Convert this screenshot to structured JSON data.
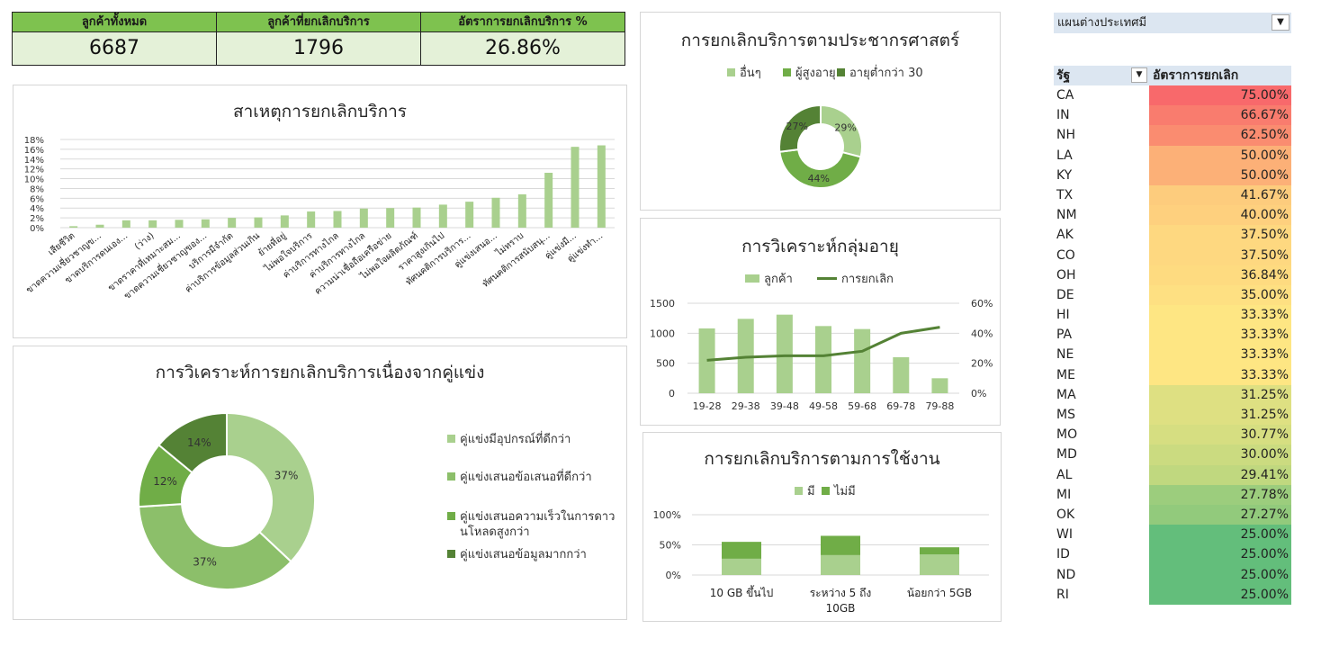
{
  "kpi": {
    "total_label": "ลูกค้าทั้งหมด",
    "total_value": "6687",
    "churned_label": "ลูกค้าที่ยกเลิกบริการ",
    "churned_value": "1796",
    "rate_label": "อัตราการยกเลิกบริการ %",
    "rate_value": "26.86%"
  },
  "colors": {
    "kpi_header": "#7ec24f",
    "kpi_value_bg": "#e4f1d8",
    "bar_green": "#a9d08e",
    "line_green": "#548235"
  },
  "slicer": {
    "title": "แผนต่างประเทศมี",
    "filter_icon": "filter-icon"
  },
  "chart_data": [
    {
      "id": "reasons",
      "type": "bar",
      "title": "สาเหตุการยกเลิกบริการ",
      "categories": [
        "เสียชีวิต",
        "ขาดความเชี่ยวชาญข...",
        "ขาดบริการดนเอง...",
        "(ว่าง)",
        "ขาดราคาที่เหมาะสม...",
        "ขาดความเชี่ยวชาญของ...",
        "บริการมีจำกัด",
        "ค่าบริการข้อมูลส่วนเกิน",
        "ย้ายที่อยู่",
        "ไม่พอใจบริการ",
        "ค่าบริการทางไกล",
        "ค่าบริการทางไกล",
        "ความน่าเชื่อถือเครือข่าย",
        "ไม่พอใจผลิตภัณฑ์",
        "ราคาสูงเกินไป",
        "ทัศนคติการบริการ...",
        "คู่แข่งเสนอ...",
        "ไม่ทราบ",
        "ทัศนคติการสนับสนุ...",
        "คู่แข่งมี...",
        "คู่แข่งทำ..."
      ],
      "values": [
        0.3,
        0.6,
        1.5,
        1.5,
        1.6,
        1.7,
        2.0,
        2.1,
        2.5,
        3.3,
        3.4,
        3.9,
        4.0,
        4.1,
        4.7,
        5.3,
        6.1,
        6.8,
        11.2,
        16.5,
        16.8
      ],
      "ylim": [
        0,
        18
      ],
      "yticks": [
        "0%",
        "2%",
        "4%",
        "6%",
        "8%",
        "10%",
        "12%",
        "14%",
        "16%",
        "18%"
      ],
      "grid": true
    },
    {
      "id": "competitor",
      "type": "pie",
      "title": "การวิเคราะห์การยกเลิกบริการเนื่องจากคู่แข่ง",
      "labels": [
        "คู่แข่งมีอุปกรณ์ที่ดีกว่า",
        "คู่แข่งเสนอข้อเสนอที่ดีกว่า",
        "คู่แข่งเสนอความเร็วในการดาวน์โหลดสูงกว่า",
        "คู่แข่งเสนอข้อมูลมากกว่า"
      ],
      "legend_line2": "นโหลดสูงกว่า",
      "legend_line1": "คู่แข่งเสนอความเร็วในการดาว",
      "values": [
        37,
        37,
        12,
        14
      ],
      "value_labels": [
        "37%",
        "37%",
        "12%",
        "14%"
      ],
      "colors": [
        "#a9d08e",
        "#8cbf6a",
        "#70ad47",
        "#548235"
      ]
    },
    {
      "id": "demographic",
      "type": "pie",
      "title": "การยกเลิกบริการตามประชากรศาสตร์",
      "labels": [
        "อื่นๆ",
        "ผู้สูงอายุ",
        "อายุต่ำกว่า 30"
      ],
      "values": [
        29,
        44,
        27
      ],
      "value_labels": [
        "29%",
        "44%",
        "27%"
      ],
      "colors": [
        "#a9d08e",
        "#70ad47",
        "#548235"
      ]
    },
    {
      "id": "age",
      "type": "bar",
      "title": "การวิเคราะห์กลุ่มอายุ",
      "categories": [
        "19-28",
        "29-38",
        "39-48",
        "49-58",
        "59-68",
        "69-78",
        "79-88"
      ],
      "series": [
        {
          "name": "ลูกค้า",
          "type": "bar",
          "values": [
            1080,
            1240,
            1310,
            1120,
            1070,
            600,
            250
          ]
        },
        {
          "name": "การยกเลิก",
          "type": "line",
          "values": [
            22,
            24,
            25,
            25,
            28,
            40,
            44
          ]
        }
      ],
      "ylim": [
        0,
        1500
      ],
      "yticks": [
        "0",
        "500",
        "1000",
        "1500"
      ],
      "y2lim": [
        0,
        60
      ],
      "y2ticks": [
        "0%",
        "20%",
        "40%",
        "60%"
      ],
      "grid": true
    },
    {
      "id": "usage",
      "type": "bar",
      "title": "การยกเลิกบริการตามการใช้งาน",
      "categories": [
        "10 GB ขึ้นไป",
        "ระหว่าง 5 ถึง",
        "น้อยกว่า 5GB"
      ],
      "category_line2": [
        "",
        "10GB",
        ""
      ],
      "series": [
        {
          "name": "มี",
          "values": [
            27,
            33,
            34
          ]
        },
        {
          "name": "ไม่มี",
          "values": [
            28,
            32,
            12
          ]
        }
      ],
      "stacked": true,
      "ylim": [
        0,
        100
      ],
      "yticks": [
        "0%",
        "50%",
        "100%"
      ],
      "grid": true
    }
  ],
  "state_table": {
    "col_state": "รัฐ",
    "col_rate": "อัตราการยกเลิก",
    "rows": [
      {
        "state": "CA",
        "rate": "75.00%",
        "color": "#f8696b"
      },
      {
        "state": "IN",
        "rate": "66.67%",
        "color": "#f97c6e"
      },
      {
        "state": "NH",
        "rate": "62.50%",
        "color": "#fa8c70"
      },
      {
        "state": "LA",
        "rate": "50.00%",
        "color": "#fcb077"
      },
      {
        "state": "KY",
        "rate": "50.00%",
        "color": "#fcb077"
      },
      {
        "state": "TX",
        "rate": "41.67%",
        "color": "#fdcc7d"
      },
      {
        "state": "NM",
        "rate": "40.00%",
        "color": "#fed07e"
      },
      {
        "state": "AK",
        "rate": "37.50%",
        "color": "#fed880"
      },
      {
        "state": "CO",
        "rate": "37.50%",
        "color": "#fed880"
      },
      {
        "state": "OH",
        "rate": "36.84%",
        "color": "#fedb80"
      },
      {
        "state": "DE",
        "rate": "35.00%",
        "color": "#fee082"
      },
      {
        "state": "HI",
        "rate": "33.33%",
        "color": "#fee683"
      },
      {
        "state": "PA",
        "rate": "33.33%",
        "color": "#fee683"
      },
      {
        "state": "NE",
        "rate": "33.33%",
        "color": "#fee683"
      },
      {
        "state": "ME",
        "rate": "33.33%",
        "color": "#fee683"
      },
      {
        "state": "MA",
        "rate": "31.25%",
        "color": "#dee082"
      },
      {
        "state": "MS",
        "rate": "31.25%",
        "color": "#dee082"
      },
      {
        "state": "MO",
        "rate": "30.77%",
        "color": "#d6de81"
      },
      {
        "state": "MD",
        "rate": "30.00%",
        "color": "#cbdb80"
      },
      {
        "state": "AL",
        "rate": "29.41%",
        "color": "#c0d87f"
      },
      {
        "state": "MI",
        "rate": "27.78%",
        "color": "#9ccd7d"
      },
      {
        "state": "OK",
        "rate": "27.27%",
        "color": "#92ca7c"
      },
      {
        "state": "WI",
        "rate": "25.00%",
        "color": "#63be7b"
      },
      {
        "state": "ID",
        "rate": "25.00%",
        "color": "#63be7b"
      },
      {
        "state": "ND",
        "rate": "25.00%",
        "color": "#63be7b"
      },
      {
        "state": "RI",
        "rate": "25.00%",
        "color": "#63be7b"
      }
    ]
  }
}
